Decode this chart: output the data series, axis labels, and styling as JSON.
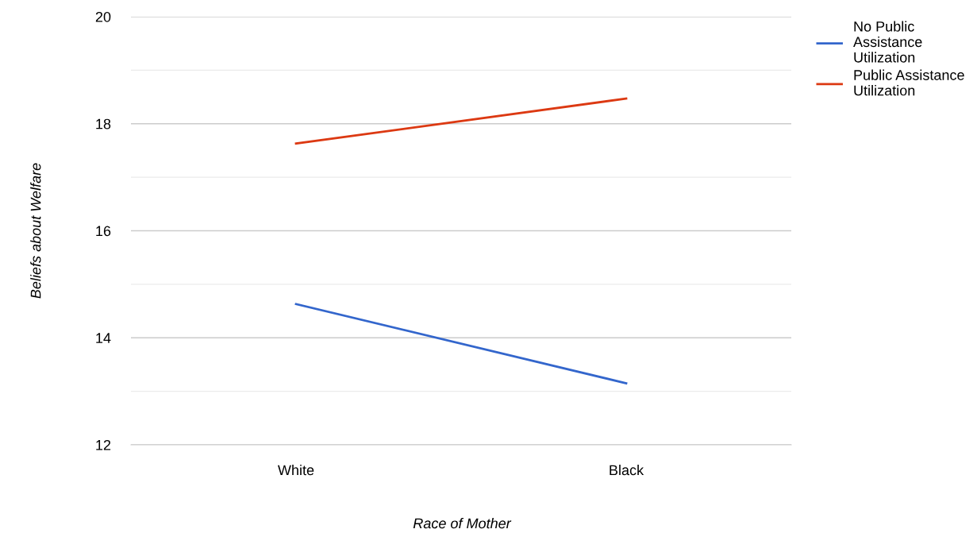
{
  "chart_data": {
    "type": "line",
    "xlabel": "Race of Mother",
    "ylabel": "Beliefs about Welfare",
    "categories": [
      "White",
      "Black"
    ],
    "series": [
      {
        "name": "No Public Assistance Utilization",
        "color": "#3366cc",
        "values": [
          14.63,
          13.15
        ]
      },
      {
        "name": "Public Assistance Utilization",
        "color": "#dc3912",
        "values": [
          17.63,
          18.47
        ]
      }
    ],
    "ylim": [
      12,
      20
    ],
    "yticks": [
      12,
      {
        "value": 13,
        "label": null
      },
      14,
      {
        "value": 15,
        "label": null
      },
      16,
      {
        "value": 17,
        "label": null
      },
      18,
      {
        "value": 19,
        "label": null
      },
      20
    ],
    "grid": "y",
    "legend": "top right",
    "marker": "none",
    "line_style": "solid"
  }
}
